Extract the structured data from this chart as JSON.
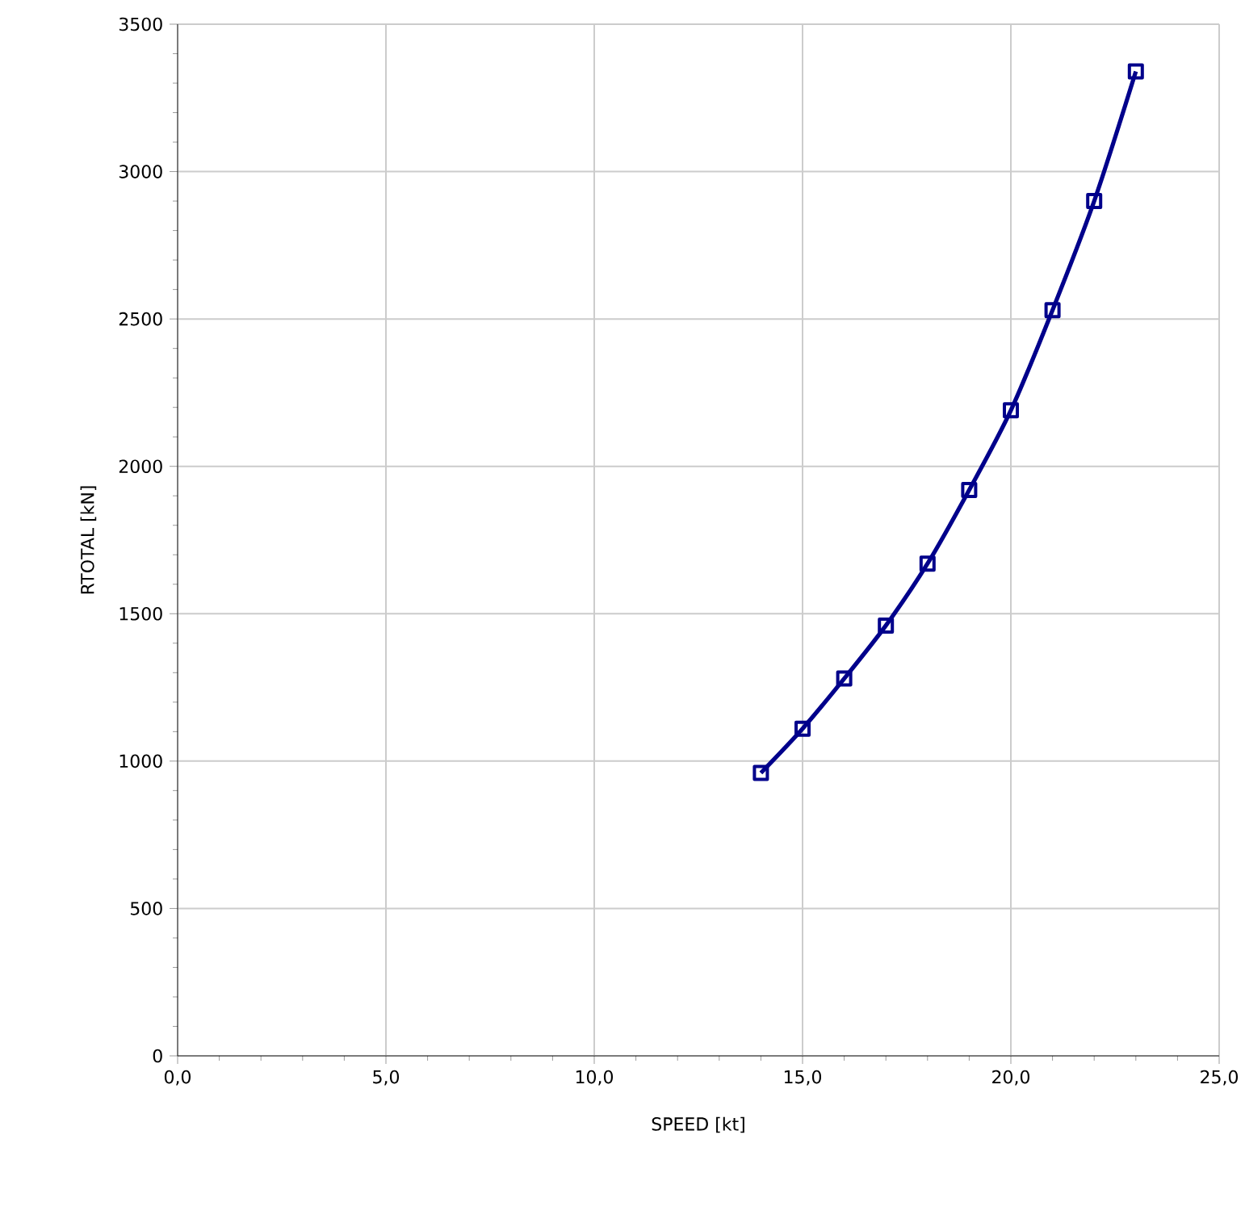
{
  "chart_data": {
    "type": "line",
    "xlabel": "SPEED [kt]",
    "ylabel": "RTOTAL [kN]",
    "xlim": [
      0,
      25
    ],
    "ylim": [
      0,
      3500
    ],
    "xticks": [
      {
        "value": 0,
        "label": "0,0"
      },
      {
        "value": 5,
        "label": "5,0"
      },
      {
        "value": 10,
        "label": "10,0"
      },
      {
        "value": 15,
        "label": "15,0"
      },
      {
        "value": 20,
        "label": "20,0"
      },
      {
        "value": 25,
        "label": "25,0"
      }
    ],
    "yticks": [
      0,
      500,
      1000,
      1500,
      2000,
      2500,
      3000,
      3500
    ],
    "grid": true,
    "marker": "square",
    "line_style": "solid",
    "series": [
      {
        "color": "#00008b",
        "x": [
          14,
          15,
          16,
          17,
          18,
          19,
          20,
          21,
          22,
          23
        ],
        "values": [
          960,
          1110,
          1280,
          1460,
          1670,
          1920,
          2190,
          2530,
          2900,
          3340
        ]
      }
    ]
  }
}
